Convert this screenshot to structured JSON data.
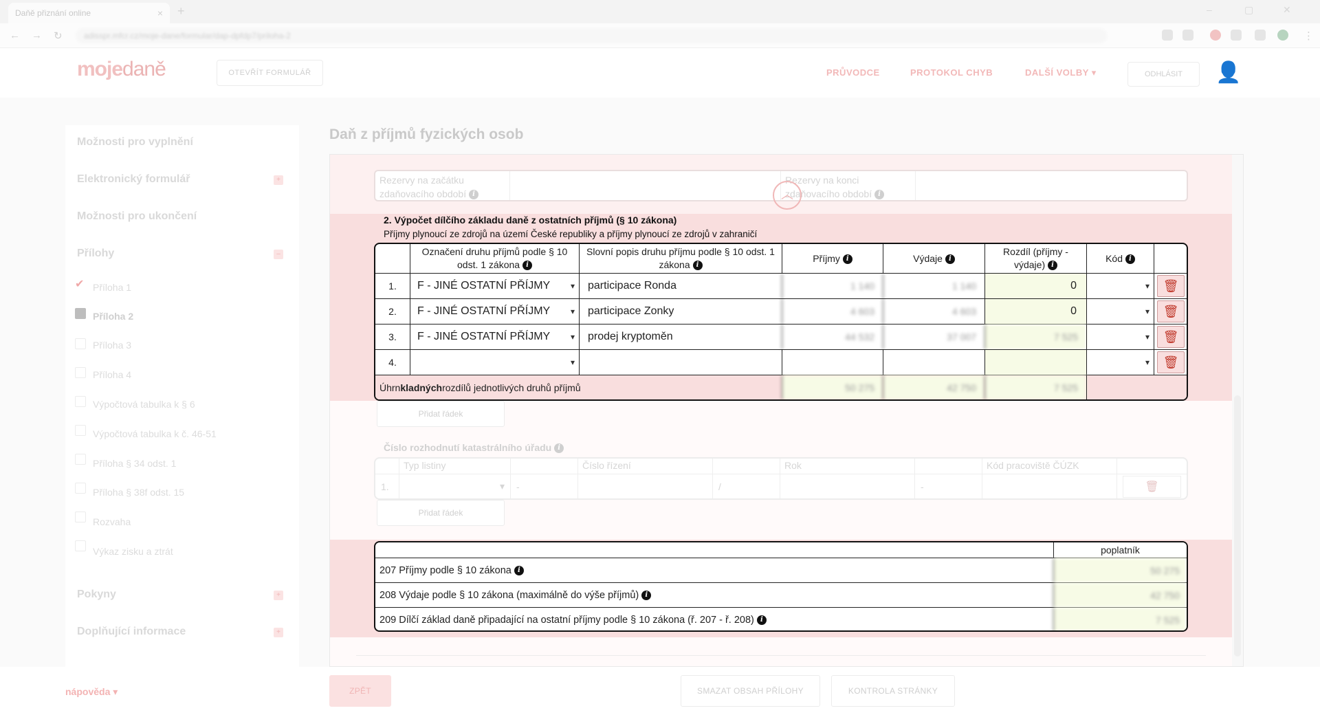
{
  "browser": {
    "tab_title": "Daňě přiznání online",
    "url": "adisspr.mfcr.cz/moje-dane/formular/dap-dpfdp7/priloha-2"
  },
  "header": {
    "logo_main": "moje",
    "logo_sub": "daně",
    "open_form_label": "OTEVŘÍT FORMULÁŘ",
    "links": [
      "PRŮVODCE",
      "PROTOKOL CHYB",
      "DALŠÍ VOLBY ▾"
    ],
    "logout_label": "ODHLÁSIT"
  },
  "sidebar": {
    "items": [
      "Možnosti pro vyplnění",
      "Elektronický formulář",
      "Možnosti pro ukončení",
      "Přílohy"
    ],
    "attachments": [
      "Příloha 1",
      "Příloha 2",
      "Příloha 3",
      "Příloha 4",
      "Výpočtová tabulka k § 6",
      "Výpočtová tabulka k č. 46-51",
      "Příloha § 34 odst. 1",
      "Příloha § 38f odst. 15",
      "Rozvaha",
      "Výkaz zisku a ztrát"
    ],
    "bottom_items": [
      "Pokyny",
      "Doplňující informace"
    ]
  },
  "page": {
    "title": "Daň z příjmů fyzických osob"
  },
  "reserves": {
    "start_label": "Rezervy na začátku zdaňovacího období",
    "end_label": "Rezervy na konci zdaňovacího období"
  },
  "section2": {
    "title": "2. Výpočet dílčího základu daně z ostatních příjmů (§ 10 zákona)",
    "subtitle": "Příjmy plynoucí ze zdrojů na území České republiky a příjmy plynoucí ze zdrojů v zahraničí",
    "headers": {
      "type": "Označení druhu příjmů podle § 10 odst. 1 zákona",
      "desc": "Slovní popis druhu příjmu podle § 10 odst. 1 zákona",
      "income": "Příjmy",
      "expenses": "Výdaje",
      "diff": "Rozdíl (příjmy - výdaje)",
      "code": "Kód"
    },
    "rows": [
      {
        "no": "1.",
        "type": "F - JINÉ OSTATNÍ PŘÍJMY",
        "desc": "participace Ronda",
        "income": "1 140",
        "expenses": "1 140",
        "diff": "0"
      },
      {
        "no": "2.",
        "type": "F - JINÉ OSTATNÍ PŘÍJMY",
        "desc": "participace Zonky",
        "income": "4 603",
        "expenses": "4 603",
        "diff": "0"
      },
      {
        "no": "3.",
        "type": "F - JINÉ OSTATNÍ PŘÍJMY",
        "desc": "prodej kryptoměn",
        "income": "44 532",
        "expenses": "37 007",
        "diff": "7 525"
      },
      {
        "no": "4.",
        "type": "",
        "desc": "",
        "income": "",
        "expenses": "",
        "diff": ""
      }
    ],
    "total_label_pre": "Úhrn ",
    "total_label_bold": "kladných",
    "total_label_post": " rozdílů jednotlivých druhů příjmů",
    "total_income": "50 275",
    "total_expenses": "42 750",
    "total_diff": "7 525",
    "add_row_label": "Přidat řádek"
  },
  "cadastre": {
    "label": "Číslo rozhodnutí katastrálního úřadu",
    "headers": [
      "Typ listiny",
      "Číslo řízení",
      "Rok",
      "Kód pracoviště ČÚZK"
    ],
    "row_no": "1.",
    "dash": "-",
    "slash": "/",
    "add_row_label": "Přidat řádek"
  },
  "summary": {
    "header": "poplatník",
    "rows": [
      {
        "label": "207 Příjmy podle § 10 zákona",
        "value": "50 275"
      },
      {
        "label": "208 Výdaje podle § 10 zákona (maximálně do výše příjmů)",
        "value": "42 750"
      },
      {
        "label": "209 Dílčí základ daně připadající na ostatní příjmy podle § 10 zákona (ř. 207 - ř. 208)",
        "value": "7 525"
      }
    ]
  },
  "footer": {
    "help_label": "nápověda ▾",
    "back_label": "ZPĚT",
    "clear_label": "SMAZAT OBSAH PŘÍLOHY",
    "check_label": "KONTROLA STRÁNKY"
  }
}
